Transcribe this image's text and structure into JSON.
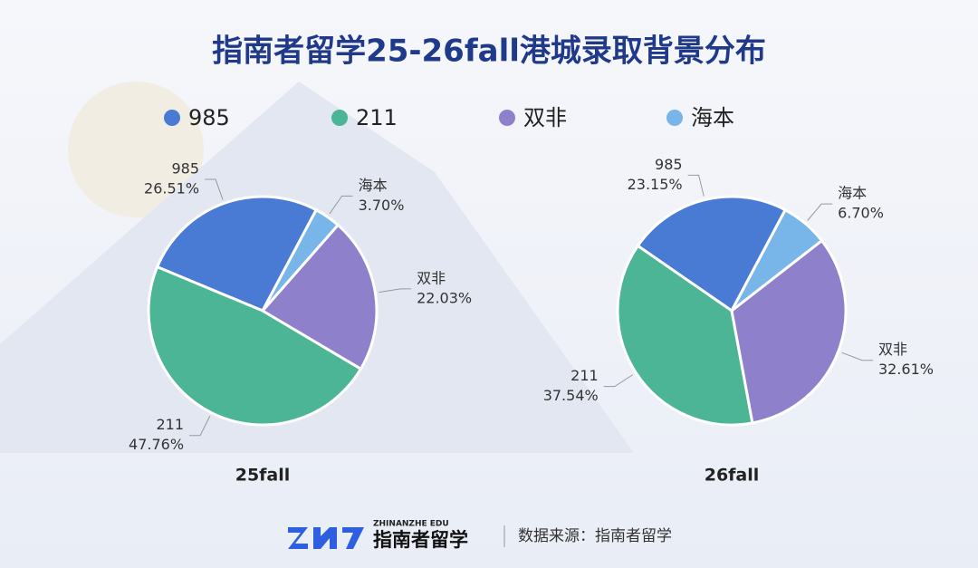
{
  "title": "指南者留学25-26fall港城录取背景分布",
  "chart_data": [
    {
      "type": "pie",
      "title": "25fall",
      "categories": [
        "985",
        "211",
        "双非",
        "海本"
      ],
      "values": [
        26.51,
        47.76,
        22.03,
        3.7
      ],
      "value_labels": [
        "26.51%",
        "47.76%",
        "22.03%",
        "3.70%"
      ],
      "colors": [
        "#4a7bd4",
        "#4cb596",
        "#8f80cc",
        "#78b6ea"
      ]
    },
    {
      "type": "pie",
      "title": "26fall",
      "categories": [
        "985",
        "211",
        "双非",
        "海本"
      ],
      "values": [
        23.15,
        37.54,
        32.61,
        6.7
      ],
      "value_labels": [
        "23.15%",
        "37.54%",
        "32.61%",
        "6.70%"
      ],
      "colors": [
        "#4a7bd4",
        "#4cb596",
        "#8f80cc",
        "#78b6ea"
      ]
    }
  ],
  "footer": {
    "brand_en": "ZHINANZHE EDU",
    "brand": "指南者留学",
    "source": "数据来源：指南者留学"
  }
}
